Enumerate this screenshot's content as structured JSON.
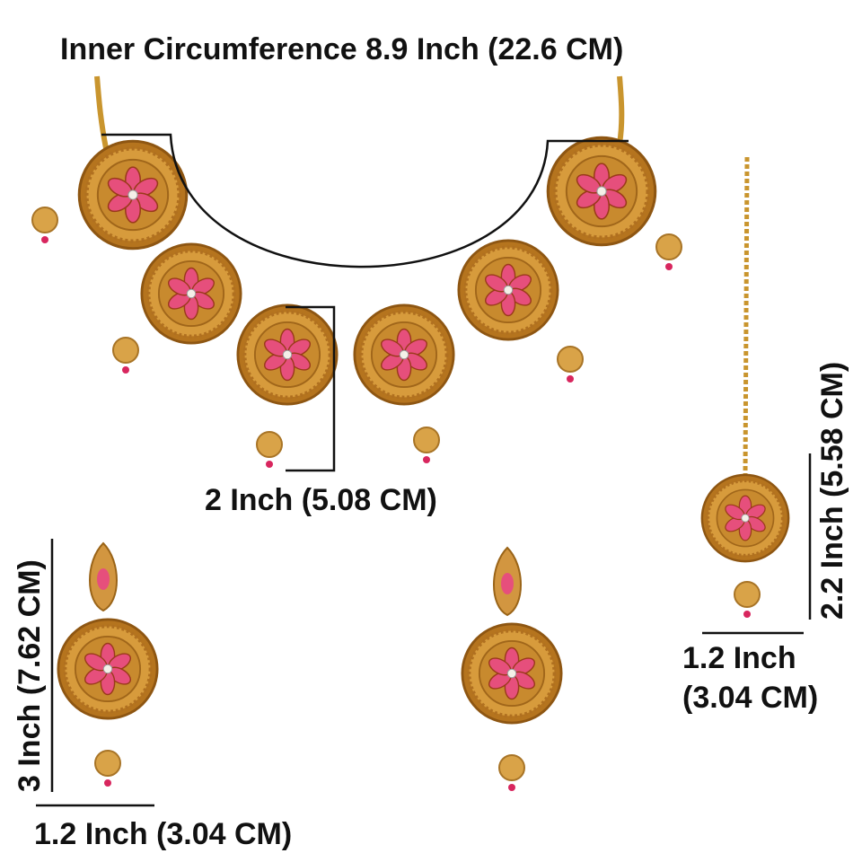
{
  "labels": {
    "necklace_circumference": "Inner Circumference 8.9 Inch (22.6 CM)",
    "pendant_width": "2 Inch (5.08 CM)",
    "earring_height": "3 Inch (7.62 CM)",
    "earring_width": "1.2 Inch (3.04 CM)",
    "tikka_height": "2.2 Inch (5.58 CM)",
    "tikka_width_line1": "1.2 Inch",
    "tikka_width_line2": "(3.04 CM)"
  }
}
